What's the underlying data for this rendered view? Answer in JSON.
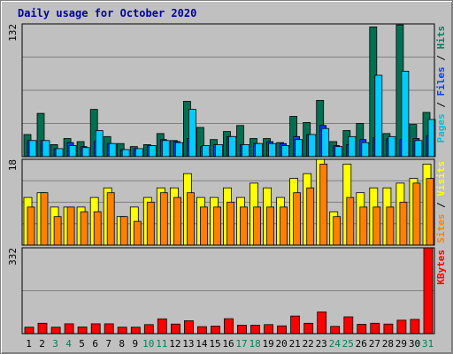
{
  "chart_data": {
    "type": "bar",
    "title": "Daily usage for October 2020",
    "categories": [
      "1",
      "2",
      "3",
      "4",
      "5",
      "6",
      "7",
      "8",
      "9",
      "10",
      "11",
      "12",
      "13",
      "14",
      "15",
      "16",
      "17",
      "18",
      "19",
      "20",
      "21",
      "22",
      "23",
      "24",
      "25",
      "26",
      "27",
      "28",
      "29",
      "30",
      "31"
    ],
    "weekend_days": [
      "3",
      "4",
      "10",
      "11",
      "17",
      "18",
      "24",
      "25",
      "31"
    ],
    "panels": [
      {
        "id": "top",
        "ymax": 132,
        "ymax_label": "132",
        "legend": [
          {
            "text": "Pages",
            "color": "#00c0e0"
          },
          {
            "text": " / ",
            "color": "#000000"
          },
          {
            "text": "Files",
            "color": "#0040ff"
          },
          {
            "text": " / ",
            "color": "#000000"
          },
          {
            "text": "Hits",
            "color": "#008060"
          }
        ],
        "series": [
          {
            "name": "Hits",
            "color": "#007050",
            "values": [
              22,
              43,
              12,
              18,
              15,
              47,
              20,
              13,
              10,
              12,
              23,
              16,
              55,
              29,
              17,
              25,
              31,
              18,
              18,
              14,
              40,
              34,
              56,
              15,
              26,
              33,
              129,
              23,
              131,
              32,
              44
            ]
          },
          {
            "name": "Files",
            "color": "#0040ff",
            "values": [
              16,
              16,
              8,
              14,
              10,
              15,
              13,
              7,
              8,
              11,
              17,
              15,
              18,
              10,
              12,
              20,
              12,
              13,
              15,
              13,
              20,
              22,
              31,
              11,
              12,
              17,
              19,
              18,
              17,
              18,
              21
            ]
          },
          {
            "name": "Pages",
            "color": "#00ccff",
            "values": [
              16,
              16,
              8,
              11,
              9,
              26,
              13,
              7,
              8,
              11,
              16,
              14,
              47,
              11,
              12,
              20,
              12,
              13,
              13,
              11,
              17,
              22,
              28,
              10,
              20,
              14,
              81,
              20,
              85,
              16,
              37
            ]
          }
        ]
      },
      {
        "id": "middle",
        "ymax": 18,
        "ymax_label": "18",
        "legend": [
          {
            "text": "Sites",
            "color": "#ff8000"
          },
          {
            "text": " / ",
            "color": "#000000"
          },
          {
            "text": "Visits",
            "color": "#ffff00"
          }
        ],
        "series": [
          {
            "name": "Visits",
            "color": "#ffff00",
            "values": [
              10,
              11,
              8,
              8,
              8,
              10,
              12,
              6,
              8,
              10,
              12,
              12,
              15,
              10,
              10,
              12,
              10,
              13,
              12,
              10,
              14,
              15,
              18,
              7,
              17,
              11,
              12,
              12,
              13,
              14,
              17
            ]
          },
          {
            "name": "Sites",
            "color": "#ff8000",
            "values": [
              8,
              11,
              6,
              8,
              7,
              7,
              11,
              6,
              5,
              9,
              11,
              10,
              11,
              8,
              8,
              9,
              8,
              8,
              8,
              8,
              11,
              12,
              17,
              6,
              10,
              8,
              8,
              8,
              9,
              13,
              14
            ]
          }
        ]
      },
      {
        "id": "bottom",
        "ymax": 332,
        "ymax_label": "332",
        "legend": [
          {
            "text": "KBytes",
            "color": "#ff0000"
          }
        ],
        "series": [
          {
            "name": "KBytes",
            "color": "#ff0000",
            "values": [
              25,
              40,
              25,
              38,
              26,
              38,
              38,
              25,
              25,
              35,
              57,
              37,
              50,
              27,
              29,
              58,
              33,
              33,
              35,
              30,
              68,
              40,
              84,
              28,
              65,
              36,
              40,
              37,
              52,
              55,
              332
            ]
          }
        ]
      }
    ]
  }
}
